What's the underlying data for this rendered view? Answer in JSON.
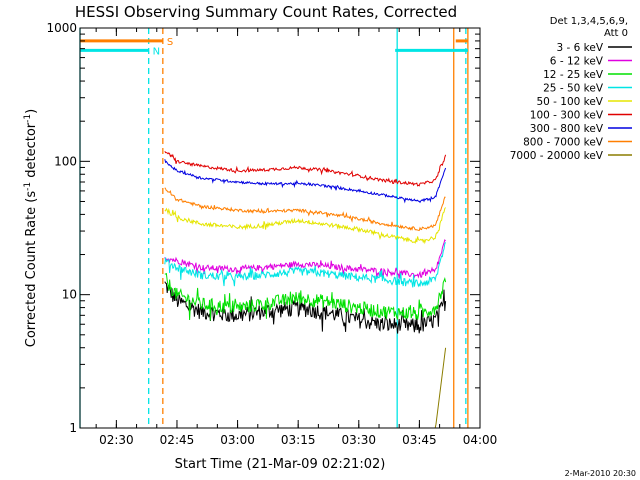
{
  "chart_data": {
    "type": "line",
    "title": "HESSI Observing Summary Count Rates, Corrected",
    "xlabel": "Start Time (21-Mar-09 02:21:02)",
    "ylabel_main": "Corrected Count Rate (s",
    "ylabel_sup1": "-1",
    "ylabel_mid": " detector",
    "ylabel_sup2": "-1",
    "ylabel_end": ")",
    "yscale": "log",
    "ylim": [
      1,
      1000
    ],
    "xlim_minutes": [
      0,
      99
    ],
    "x_ticks": [
      {
        "label": "02:30",
        "minute": 9
      },
      {
        "label": "02:45",
        "minute": 24
      },
      {
        "label": "03:00",
        "minute": 39
      },
      {
        "label": "03:15",
        "minute": 54
      },
      {
        "label": "03:30",
        "minute": 69
      },
      {
        "label": "03:45",
        "minute": 84
      },
      {
        "label": "04:00",
        "minute": 99
      }
    ],
    "y_ticks": [
      {
        "label": "1",
        "value": 1
      },
      {
        "label": "10",
        "value": 10
      },
      {
        "label": "100",
        "value": 100
      },
      {
        "label": "1000",
        "value": 1000
      }
    ],
    "legend_header": [
      "Det 1,3,4,5,6,9,",
      "Att 0"
    ],
    "legend_position": "right",
    "flags": [
      {
        "label": "S",
        "color": "#ff7f00",
        "value": 800,
        "segments": [
          [
            0,
            20.5
          ],
          [
            93,
            96
          ]
        ]
      },
      {
        "label": "N",
        "color": "#00e5e5",
        "value": 680,
        "segments": [
          [
            0,
            17
          ],
          [
            78,
            96
          ]
        ]
      }
    ],
    "markers": [
      {
        "minute": 0,
        "color": "#00e5e5",
        "style": "solid"
      },
      {
        "minute": 17,
        "color": "#00e5e5",
        "style": "dashed"
      },
      {
        "minute": 20.5,
        "color": "#ff7f00",
        "style": "dashed"
      },
      {
        "minute": 78.5,
        "color": "#00e5e5",
        "style": "solid"
      },
      {
        "minute": 92.5,
        "color": "#ff7f00",
        "style": "solid"
      },
      {
        "minute": 95.5,
        "color": "#00e5e5",
        "style": "dashed"
      },
      {
        "minute": 96,
        "color": "#ff7f00",
        "style": "solid"
      }
    ],
    "x_minutes": [
      21,
      24,
      30,
      39,
      45,
      54,
      60,
      69,
      75,
      84,
      88,
      90.5
    ],
    "series": [
      {
        "name": "3 - 6 keV",
        "color": "#000000",
        "noise": 0.14,
        "values": [
          12,
          9,
          7.5,
          7,
          7.5,
          8,
          7.5,
          6.5,
          6,
          5.8,
          6.5,
          9
        ]
      },
      {
        "name": "6 - 12 keV",
        "color": "#e000e0",
        "noise": 0.05,
        "values": [
          19,
          18,
          16,
          15.5,
          16,
          17,
          16.5,
          15.5,
          15,
          14,
          15,
          26
        ]
      },
      {
        "name": "12 - 25 keV",
        "color": "#00e000",
        "noise": 0.12,
        "values": [
          13,
          10,
          8.5,
          8,
          8.5,
          9.5,
          9,
          8,
          7.5,
          7.2,
          8,
          13
        ]
      },
      {
        "name": "25 - 50 keV",
        "color": "#00e5e5",
        "noise": 0.07,
        "values": [
          18,
          16,
          14,
          13.5,
          14,
          15,
          14.5,
          13.5,
          13,
          12,
          13,
          25
        ]
      },
      {
        "name": "50 - 100 keV",
        "color": "#e5e500",
        "noise": 0.035,
        "values": [
          44,
          38,
          34,
          32,
          33,
          36,
          34,
          31,
          28,
          25,
          27,
          45
        ]
      },
      {
        "name": "100 - 300 keV",
        "color": "#e00000",
        "noise": 0.025,
        "values": [
          120,
          100,
          92,
          85,
          86,
          90,
          86,
          78,
          72,
          67,
          72,
          110
        ]
      },
      {
        "name": "300 - 800 keV",
        "color": "#0000e0",
        "noise": 0.02,
        "values": [
          100,
          85,
          75,
          70,
          68,
          68,
          66,
          60,
          56,
          50,
          54,
          90
        ]
      },
      {
        "name": "800 - 7000 keV",
        "color": "#ff7f00",
        "noise": 0.025,
        "values": [
          62,
          52,
          46,
          43,
          42,
          43,
          41,
          37,
          34,
          31,
          33,
          55
        ]
      },
      {
        "name": "7000 - 20000 keV",
        "color": "#8b7d00",
        "noise": 0,
        "values": [
          1,
          1,
          1,
          1,
          1,
          1,
          1,
          1,
          1,
          1,
          1,
          4
        ]
      }
    ]
  },
  "footer": {
    "date_stamp": "2-Mar-2010 20:30"
  }
}
